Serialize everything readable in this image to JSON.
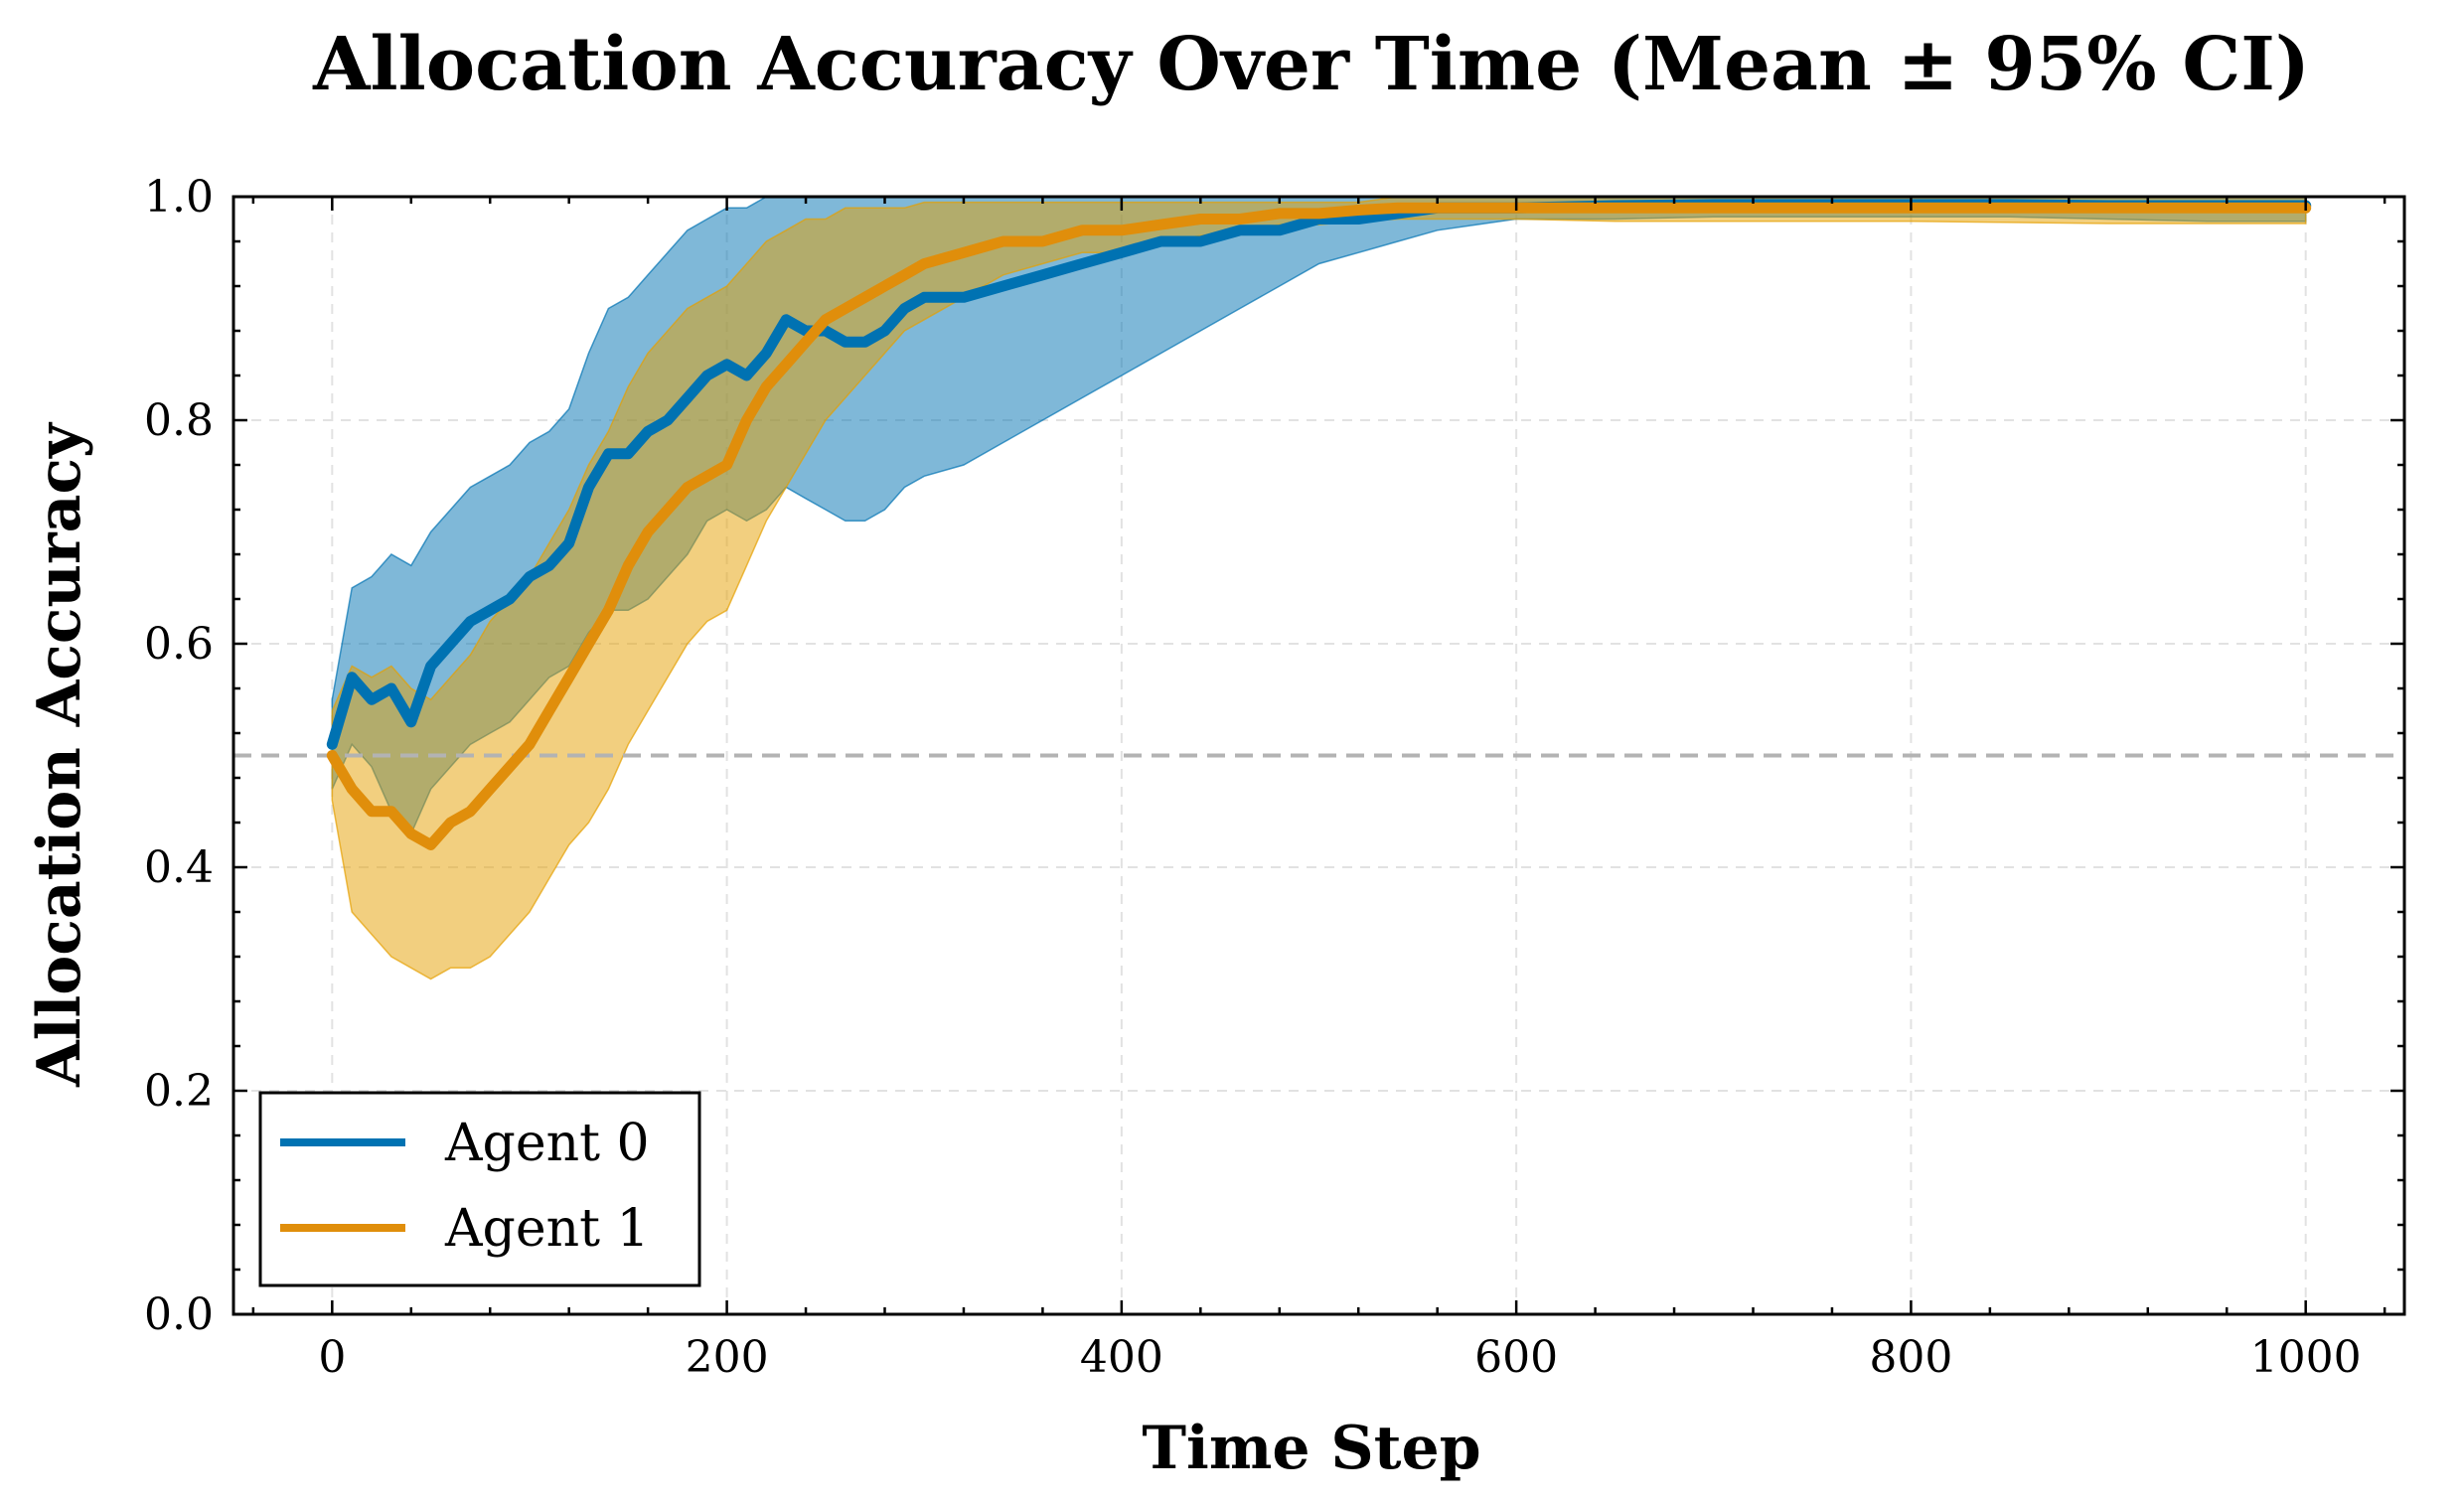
{
  "chart_data": {
    "type": "line",
    "title": "Allocation Accuracy Over Time (Mean ± 95% CI)",
    "xlabel": "Time Step",
    "ylabel": "Allocation Accuracy",
    "xlim": [
      -50,
      1050
    ],
    "ylim": [
      0.0,
      1.0
    ],
    "xticks": [
      0,
      200,
      400,
      600,
      800,
      1000
    ],
    "yticks": [
      0.0,
      0.2,
      0.4,
      0.6,
      0.8,
      1.0
    ],
    "xtick_labels": [
      "0",
      "200",
      "400",
      "600",
      "800",
      "1000"
    ],
    "ytick_labels": [
      "0.0",
      "0.2",
      "0.4",
      "0.6",
      "0.8",
      "1.0"
    ],
    "grid": true,
    "reference_line": {
      "y": 0.5,
      "style": "dashed",
      "color": "#b3b3b3"
    },
    "legend_position": "lower-left",
    "series": [
      {
        "name": "Agent 0",
        "color": "#0072b2",
        "band_color": "#0072b2",
        "x": [
          0,
          10,
          20,
          30,
          40,
          50,
          60,
          70,
          80,
          90,
          100,
          110,
          120,
          130,
          140,
          150,
          160,
          170,
          180,
          190,
          200,
          210,
          220,
          230,
          240,
          250,
          260,
          270,
          280,
          290,
          300,
          320,
          340,
          360,
          380,
          400,
          420,
          440,
          460,
          480,
          500,
          520,
          540,
          560,
          580,
          600,
          650,
          700,
          750,
          800,
          850,
          900,
          950,
          1000
        ],
        "mean": [
          0.51,
          0.57,
          0.55,
          0.56,
          0.53,
          0.58,
          0.6,
          0.62,
          0.63,
          0.64,
          0.66,
          0.67,
          0.69,
          0.74,
          0.77,
          0.77,
          0.79,
          0.8,
          0.82,
          0.84,
          0.85,
          0.84,
          0.86,
          0.89,
          0.88,
          0.88,
          0.87,
          0.87,
          0.88,
          0.9,
          0.91,
          0.91,
          0.92,
          0.93,
          0.94,
          0.95,
          0.96,
          0.96,
          0.97,
          0.97,
          0.98,
          0.98,
          0.985,
          0.99,
          0.99,
          0.99,
          0.992,
          0.993,
          0.993,
          0.993,
          0.993,
          0.992,
          0.992,
          0.992
        ],
        "lower": [
          0.47,
          0.51,
          0.49,
          0.45,
          0.43,
          0.47,
          0.49,
          0.51,
          0.52,
          0.53,
          0.55,
          0.57,
          0.58,
          0.61,
          0.63,
          0.63,
          0.64,
          0.66,
          0.68,
          0.71,
          0.72,
          0.71,
          0.72,
          0.74,
          0.73,
          0.72,
          0.71,
          0.71,
          0.72,
          0.74,
          0.75,
          0.76,
          0.78,
          0.8,
          0.82,
          0.84,
          0.86,
          0.88,
          0.9,
          0.92,
          0.94,
          0.95,
          0.96,
          0.97,
          0.975,
          0.98,
          0.98,
          0.982,
          0.982,
          0.982,
          0.982,
          0.98,
          0.978,
          0.978
        ],
        "upper": [
          0.55,
          0.65,
          0.66,
          0.68,
          0.67,
          0.7,
          0.72,
          0.74,
          0.75,
          0.76,
          0.78,
          0.79,
          0.81,
          0.86,
          0.9,
          0.91,
          0.93,
          0.95,
          0.97,
          0.98,
          0.99,
          0.99,
          1.0,
          1.0,
          1.0,
          1.0,
          1.0,
          1.0,
          1.0,
          1.0,
          1.0,
          1.0,
          1.0,
          1.0,
          1.0,
          1.0,
          1.0,
          1.0,
          1.0,
          1.0,
          1.0,
          1.0,
          1.0,
          1.0,
          1.0,
          1.0,
          1.0,
          1.0,
          1.0,
          1.0,
          1.0,
          1.0,
          1.0,
          1.0
        ]
      },
      {
        "name": "Agent 1",
        "color": "#e08e0b",
        "band_color": "#e69f00",
        "x": [
          0,
          10,
          20,
          30,
          40,
          50,
          60,
          70,
          80,
          90,
          100,
          110,
          120,
          130,
          140,
          150,
          160,
          170,
          180,
          190,
          200,
          210,
          220,
          230,
          240,
          250,
          260,
          270,
          280,
          290,
          300,
          320,
          340,
          360,
          380,
          400,
          420,
          440,
          460,
          480,
          500,
          520,
          540,
          560,
          580,
          600,
          650,
          700,
          750,
          800,
          850,
          900,
          950,
          1000
        ],
        "mean": [
          0.5,
          0.47,
          0.45,
          0.45,
          0.43,
          0.42,
          0.44,
          0.45,
          0.47,
          0.49,
          0.51,
          0.54,
          0.57,
          0.6,
          0.63,
          0.67,
          0.7,
          0.72,
          0.74,
          0.75,
          0.76,
          0.8,
          0.83,
          0.85,
          0.87,
          0.89,
          0.9,
          0.91,
          0.92,
          0.93,
          0.94,
          0.95,
          0.96,
          0.96,
          0.97,
          0.97,
          0.975,
          0.98,
          0.98,
          0.985,
          0.985,
          0.988,
          0.99,
          0.99,
          0.99,
          0.99,
          0.99,
          0.99,
          0.99,
          0.99,
          0.99,
          0.99,
          0.99,
          0.99
        ],
        "lower": [
          0.46,
          0.36,
          0.34,
          0.32,
          0.31,
          0.3,
          0.31,
          0.31,
          0.32,
          0.34,
          0.36,
          0.39,
          0.42,
          0.44,
          0.47,
          0.51,
          0.54,
          0.57,
          0.6,
          0.62,
          0.63,
          0.67,
          0.71,
          0.74,
          0.77,
          0.8,
          0.82,
          0.84,
          0.86,
          0.88,
          0.89,
          0.91,
          0.93,
          0.94,
          0.95,
          0.95,
          0.96,
          0.965,
          0.97,
          0.975,
          0.975,
          0.978,
          0.98,
          0.98,
          0.98,
          0.98,
          0.978,
          0.978,
          0.978,
          0.978,
          0.977,
          0.976,
          0.976,
          0.976
        ],
        "upper": [
          0.54,
          0.58,
          0.57,
          0.58,
          0.56,
          0.55,
          0.57,
          0.59,
          0.62,
          0.64,
          0.66,
          0.69,
          0.72,
          0.76,
          0.79,
          0.83,
          0.86,
          0.88,
          0.9,
          0.91,
          0.92,
          0.94,
          0.96,
          0.97,
          0.98,
          0.98,
          0.99,
          0.99,
          0.99,
          0.99,
          0.995,
          0.995,
          0.995,
          0.995,
          0.995,
          0.995,
          0.995,
          0.995,
          0.995,
          0.995,
          0.995,
          0.995,
          1.0,
          1.0,
          1.0,
          1.0,
          1.0,
          1.0,
          1.0,
          1.0,
          1.0,
          1.0,
          1.0,
          1.0
        ]
      }
    ]
  }
}
